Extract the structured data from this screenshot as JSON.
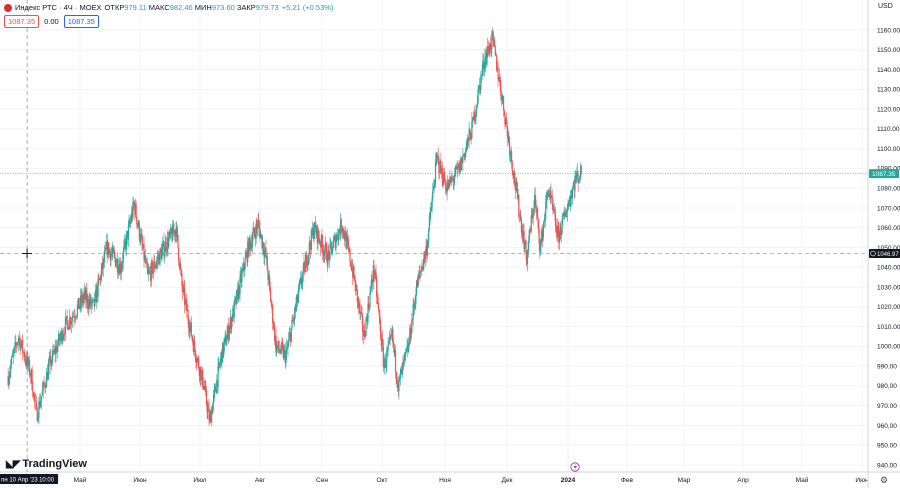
{
  "header": {
    "title": "Индекс РТС · 4Ч · MOEX",
    "ohlc": [
      {
        "label": "ОТКР",
        "value": "979.11"
      },
      {
        "label": "МАКС",
        "value": "982.46"
      },
      {
        "label": "МИН",
        "value": "973.60"
      },
      {
        "label": "ЗАКР",
        "value": "979.73"
      }
    ],
    "change": "+5.21 (+0.53%)",
    "bid": "1087.35",
    "spread": "0.00",
    "ask": "1087.35",
    "currency": "USD"
  },
  "branding": {
    "logo_text": "TradingView"
  },
  "colors": {
    "up": "#26a69a",
    "down": "#ef5350",
    "grid": "#f0f3fa",
    "text": "#131722"
  },
  "chart_data": {
    "type": "candlestick",
    "y_range": [
      935,
      1168
    ],
    "y_ticks": [
      "940.00",
      "950.00",
      "960.00",
      "970.00",
      "980.00",
      "990.00",
      "1000.00",
      "1010.00",
      "1020.00",
      "1030.00",
      "1040.00",
      "1050.00",
      "1060.00",
      "1070.00",
      "1080.00",
      "1090.00",
      "1100.00",
      "1110.00",
      "1120.00",
      "1130.00",
      "1140.00",
      "1150.00",
      "1160.00"
    ],
    "x_labels": [
      "Май",
      "Июн",
      "Июл",
      "Авг",
      "Сен",
      "Окт",
      "Ноя",
      "Дек",
      "2024",
      "Фев",
      "Мар",
      "Апр",
      "Май",
      "Июн"
    ],
    "price_path": [
      [
        "2023-04-03",
        985
      ],
      [
        "2023-04-07",
        1005
      ],
      [
        "2023-04-12",
        985
      ],
      [
        "2023-04-14",
        965
      ],
      [
        "2023-04-19",
        990
      ],
      [
        "2023-04-25",
        1010
      ],
      [
        "2023-05-03",
        1025
      ],
      [
        "2023-05-08",
        1020
      ],
      [
        "2023-05-15",
        1050
      ],
      [
        "2023-05-22",
        1040
      ],
      [
        "2023-05-29",
        1072
      ],
      [
        "2023-06-05",
        1035
      ],
      [
        "2023-06-12",
        1048
      ],
      [
        "2023-06-19",
        1060
      ],
      [
        "2023-06-22",
        1030
      ],
      [
        "2023-06-28",
        1000
      ],
      [
        "2023-07-03",
        980
      ],
      [
        "2023-07-06",
        962
      ],
      [
        "2023-07-12",
        995
      ],
      [
        "2023-07-19",
        1020
      ],
      [
        "2023-07-26",
        1050
      ],
      [
        "2023-07-31",
        1062
      ],
      [
        "2023-08-04",
        1045
      ],
      [
        "2023-08-09",
        1000
      ],
      [
        "2023-08-14",
        995
      ],
      [
        "2023-08-21",
        1030
      ],
      [
        "2023-08-28",
        1060
      ],
      [
        "2023-09-04",
        1045
      ],
      [
        "2023-09-11",
        1062
      ],
      [
        "2023-09-16",
        1040
      ],
      [
        "2023-09-22",
        1005
      ],
      [
        "2023-09-27",
        1040
      ],
      [
        "2023-10-02",
        990
      ],
      [
        "2023-10-06",
        1005
      ],
      [
        "2023-10-09",
        980
      ],
      [
        "2023-10-14",
        1000
      ],
      [
        "2023-10-18",
        1030
      ],
      [
        "2023-10-23",
        1050
      ],
      [
        "2023-10-28",
        1095
      ],
      [
        "2023-11-02",
        1080
      ],
      [
        "2023-11-08",
        1090
      ],
      [
        "2023-11-14",
        1110
      ],
      [
        "2023-11-20",
        1145
      ],
      [
        "2023-11-24",
        1155
      ],
      [
        "2023-11-28",
        1130
      ],
      [
        "2023-12-04",
        1090
      ],
      [
        "2023-12-07",
        1070
      ],
      [
        "2023-12-11",
        1045
      ],
      [
        "2023-12-15",
        1075
      ],
      [
        "2023-12-18",
        1050
      ],
      [
        "2023-12-22",
        1080
      ],
      [
        "2023-12-27",
        1055
      ],
      [
        "2024-01-02",
        1075
      ],
      [
        "2024-01-05",
        1085
      ],
      [
        "2024-01-08",
        1087.35
      ]
    ],
    "crosshair": {
      "date_label": "пн 10 Апр '23",
      "time_label": "10:00",
      "price_label": "1046.97",
      "price": 1046.97
    },
    "last_price": {
      "label": "1087.35",
      "value": 1087.35
    }
  }
}
